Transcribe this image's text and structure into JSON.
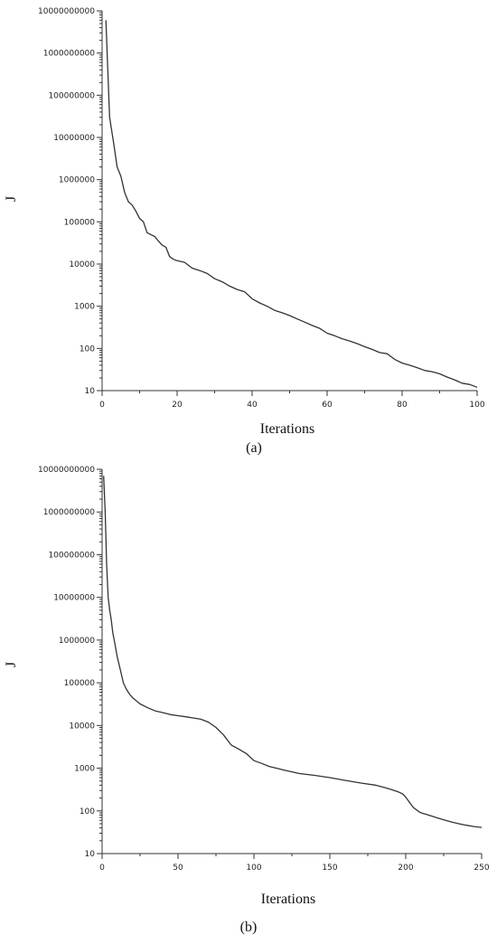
{
  "chart_data": [
    {
      "type": "line",
      "panel_label": "(a)",
      "xlabel": "Iterations",
      "ylabel": "J",
      "yscale": "log",
      "xlim": [
        0,
        100
      ],
      "ylim": [
        10,
        10000000000
      ],
      "xticks": [
        0,
        20,
        40,
        60,
        80,
        100
      ],
      "xtick_labels": [
        "0",
        "20",
        "40",
        "60",
        "80",
        "100"
      ],
      "yticks": [
        10,
        100,
        1000,
        10000,
        100000,
        1000000,
        10000000,
        100000000,
        1000000000,
        10000000000
      ],
      "ytick_labels": [
        "10",
        "100",
        "1000",
        "10000",
        "100000",
        "1000000",
        "10000000",
        "100000000",
        "1000000000",
        "10000000000"
      ],
      "grid": false,
      "series": [
        {
          "x": [
            1,
            2,
            3,
            4,
            5,
            6,
            7,
            8,
            9,
            10,
            11,
            12,
            13,
            14,
            15,
            16,
            17,
            18,
            19,
            20,
            22,
            24,
            26,
            28,
            30,
            32,
            34,
            36,
            38,
            40,
            42,
            44,
            46,
            48,
            50,
            52,
            54,
            56,
            58,
            60,
            62,
            64,
            66,
            68,
            70,
            72,
            74,
            76,
            78,
            80,
            82,
            84,
            86,
            88,
            90,
            92,
            94,
            96,
            98,
            100
          ],
          "y": [
            6000000000,
            30000000,
            8000000,
            2000000,
            1200000,
            500000,
            300000,
            250000,
            180000,
            120000,
            100000,
            55000,
            50000,
            45000,
            35000,
            28000,
            25000,
            15000,
            13000,
            12000,
            11000,
            8000,
            7000,
            6000,
            4500,
            3800,
            3000,
            2500,
            2200,
            1500,
            1200,
            1000,
            800,
            700,
            600,
            500,
            420,
            350,
            300,
            230,
            200,
            170,
            150,
            130,
            110,
            95,
            80,
            75,
            55,
            45,
            40,
            35,
            30,
            28,
            25,
            21,
            18,
            15,
            14,
            12
          ]
        }
      ]
    },
    {
      "type": "line",
      "panel_label": "(b)",
      "xlabel": "Iterations",
      "ylabel": "J",
      "yscale": "log",
      "xlim": [
        0,
        250
      ],
      "ylim": [
        10,
        10000000000
      ],
      "xticks": [
        0,
        50,
        100,
        150,
        200,
        250
      ],
      "xtick_labels": [
        "0",
        "50",
        "100",
        "150",
        "200",
        "250"
      ],
      "yticks": [
        10,
        100,
        1000,
        10000,
        100000,
        1000000,
        10000000,
        100000000,
        1000000000,
        10000000000
      ],
      "ytick_labels": [
        "10",
        "100",
        "1000",
        "10000",
        "100000",
        "1000000",
        "10000000",
        "100000000",
        "1000000000",
        "10000000000"
      ],
      "grid": false,
      "series": [
        {
          "x": [
            1,
            2,
            3,
            4,
            5,
            6,
            7,
            8,
            10,
            12,
            14,
            16,
            18,
            20,
            25,
            30,
            35,
            40,
            45,
            50,
            55,
            60,
            65,
            70,
            75,
            80,
            85,
            90,
            95,
            100,
            105,
            110,
            115,
            120,
            130,
            140,
            150,
            160,
            170,
            180,
            185,
            190,
            195,
            198,
            200,
            203,
            205,
            208,
            210,
            215,
            220,
            225,
            230,
            235,
            240,
            245,
            250
          ],
          "y": [
            7000000000,
            1000000000,
            60000000,
            10000000,
            5000000,
            3000000,
            1500000,
            1000000,
            400000,
            200000,
            100000,
            70000,
            55000,
            45000,
            32000,
            26000,
            22000,
            20000,
            18000,
            17000,
            16000,
            15000,
            14000,
            12000,
            9000,
            6000,
            3500,
            2800,
            2200,
            1500,
            1300,
            1100,
            1000,
            900,
            750,
            680,
            600,
            520,
            450,
            400,
            360,
            320,
            280,
            250,
            210,
            150,
            120,
            100,
            90,
            80,
            70,
            62,
            55,
            50,
            46,
            43,
            41
          ]
        }
      ]
    }
  ]
}
